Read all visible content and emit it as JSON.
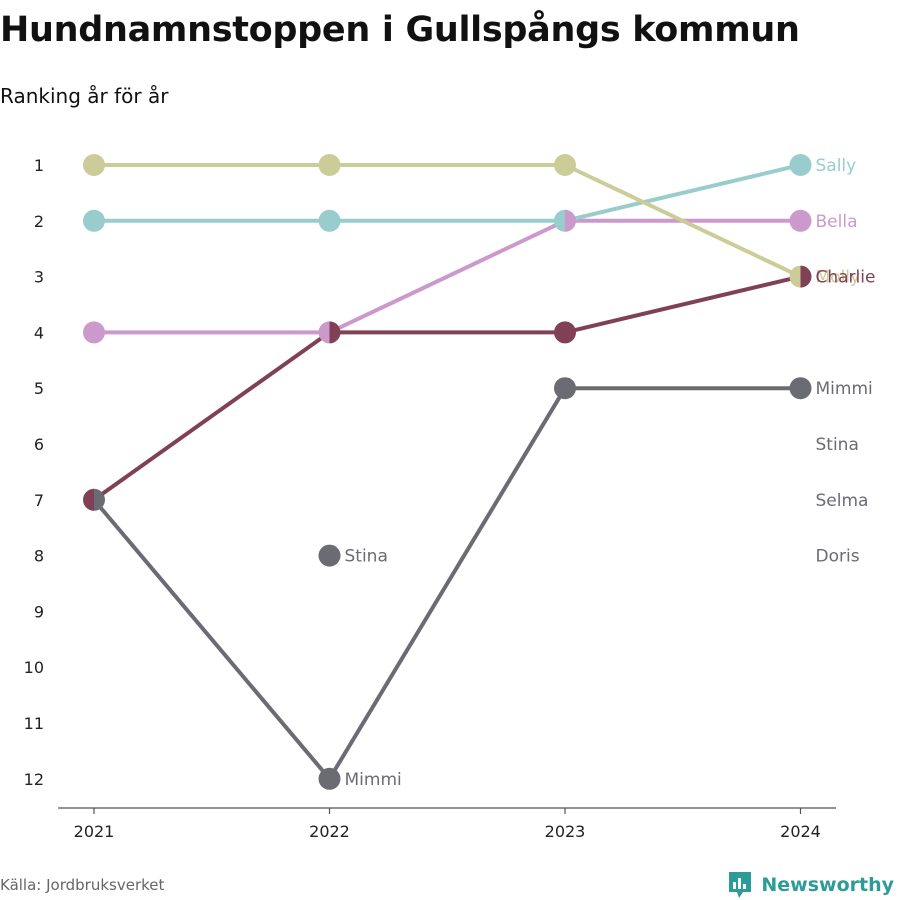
{
  "title": "Hundnamnstoppen i Gullspångs kommun",
  "subtitle": "Ranking år för år",
  "source": "Källa: Jordbruksverket",
  "brand": "Newsworthy",
  "chart_data": {
    "type": "line",
    "chart_kind": "bump chart (ranking)",
    "x": [
      "2021",
      "2022",
      "2023",
      "2024"
    ],
    "y_ticks": [
      "1",
      "2",
      "3",
      "4",
      "5",
      "6",
      "7",
      "8",
      "9",
      "10",
      "11",
      "12"
    ],
    "y_axis": "rank, 1 at top (reversed)",
    "ylim": [
      1,
      12
    ],
    "grid": false,
    "series": [
      {
        "name": "Molly",
        "color": "#cccc99",
        "values": [
          1,
          1,
          1,
          3
        ]
      },
      {
        "name": "Sally",
        "color": "#99cccc",
        "values": [
          2,
          2,
          2,
          1
        ]
      },
      {
        "name": "Bella",
        "color": "#cc99cc",
        "values": [
          4,
          4,
          2,
          2
        ]
      },
      {
        "name": "Charlie",
        "color": "#804055",
        "values": [
          7,
          4,
          4,
          3
        ]
      },
      {
        "name": "Mimmi",
        "color": "#6b6b73",
        "values": [
          7,
          12,
          5,
          5
        ]
      },
      {
        "name": "Stina",
        "color": "#6b6b73",
        "values": [
          null,
          8,
          null,
          6
        ]
      },
      {
        "name": "Selma",
        "color": "#6b6b73",
        "values": [
          null,
          null,
          null,
          7
        ]
      },
      {
        "name": "Doris",
        "color": "#6b6b73",
        "values": [
          null,
          null,
          null,
          8
        ]
      }
    ],
    "annotations": [
      {
        "text": "Stina",
        "x": "2022",
        "y": 8
      },
      {
        "text": "Mimmi",
        "x": "2022",
        "y": 12
      }
    ]
  }
}
